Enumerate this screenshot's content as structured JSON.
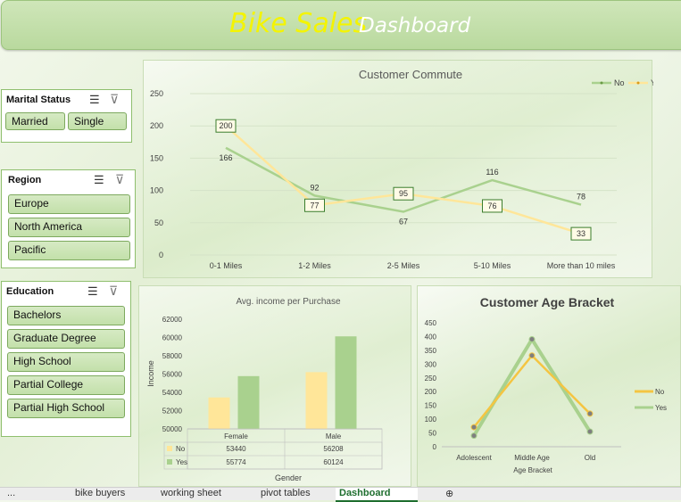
{
  "header": {
    "title_main": "Bike Sales",
    "title_sub": "Dashboard"
  },
  "slicers": {
    "marital": {
      "title": "Marital Status",
      "items": [
        "Married",
        "Single"
      ]
    },
    "region": {
      "title": "Region",
      "items": [
        "Europe",
        "North America",
        "Pacific"
      ]
    },
    "education": {
      "title": "Education",
      "items": [
        "Bachelors",
        "Graduate Degree",
        "High School",
        "Partial College",
        "Partial High School"
      ]
    }
  },
  "chart_data": [
    {
      "type": "line",
      "title": "Customer Commute",
      "categories": [
        "0-1 Miles",
        "1-2 Miles",
        "2-5 Miles",
        "5-10 Miles",
        "More than 10 miles"
      ],
      "series": [
        {
          "name": "No",
          "values": [
            166,
            92,
            67,
            116,
            78
          ]
        },
        {
          "name": "Yes",
          "values": [
            200,
            77,
            95,
            76,
            33
          ]
        }
      ],
      "ylim": [
        0,
        250
      ],
      "yticks": [
        0,
        50,
        100,
        150,
        200,
        250
      ],
      "legend": "top-right",
      "colors": {
        "No": "#a9d18e",
        "Yes": "#ffe699"
      }
    },
    {
      "type": "bar",
      "title": "Avg. income per Purchase",
      "categories": [
        "Female",
        "Male"
      ],
      "series": [
        {
          "name": "No",
          "values": [
            53440,
            56208
          ]
        },
        {
          "name": "Yes",
          "values": [
            55774,
            60124
          ]
        }
      ],
      "xlabel": "Gender",
      "ylabel": "Income",
      "ylim": [
        50000,
        62000
      ],
      "yticks": [
        50000,
        52000,
        54000,
        56000,
        58000,
        60000,
        62000
      ],
      "data_table": true,
      "colors": {
        "No": "#ffe699",
        "Yes": "#a9d18e"
      }
    },
    {
      "type": "line",
      "title": "Customer Age Bracket",
      "categories": [
        "Adolescent",
        "Middle Age",
        "Old"
      ],
      "series": [
        {
          "name": "No",
          "values": [
            71,
            331,
            120
          ]
        },
        {
          "name": "Yes",
          "values": [
            40,
            390,
            55
          ]
        }
      ],
      "xlabel": "Age Bracket",
      "ylim": [
        0,
        450
      ],
      "yticks": [
        0,
        50,
        100,
        150,
        200,
        250,
        300,
        350,
        400,
        450
      ],
      "legend": "right",
      "colors": {
        "No": "#f4c542",
        "Yes": "#a9d18e"
      }
    }
  ],
  "sheet_tabs": [
    {
      "label": "...",
      "active": false
    },
    {
      "label": "bike buyers",
      "active": false
    },
    {
      "label": "working sheet",
      "active": false
    },
    {
      "label": "pivot tables",
      "active": false
    },
    {
      "label": "Dashboard",
      "active": true
    }
  ]
}
